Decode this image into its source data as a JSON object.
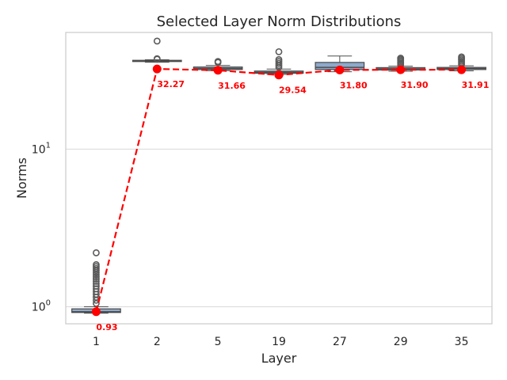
{
  "chart_data": {
    "type": "box",
    "title": "Selected Layer Norm Distributions",
    "xlabel": "Layer",
    "ylabel": "Norms",
    "yscale": "log",
    "ylim": [
      0.78,
      55
    ],
    "y_ticks": [
      {
        "value": 1,
        "base": "10",
        "exp": "0"
      },
      {
        "value": 10,
        "base": "10",
        "exp": "1"
      }
    ],
    "grid": "horizontal",
    "categories": [
      "1",
      "2",
      "5",
      "19",
      "27",
      "29",
      "35"
    ],
    "boxes": [
      {
        "q1": 0.92,
        "median": 0.93,
        "q3": 0.97,
        "whisker_low": 0.91,
        "whisker_high": 1.0,
        "outliers": [
          1.05,
          1.1,
          1.15,
          1.2,
          1.25,
          1.3,
          1.35,
          1.4,
          1.45,
          1.5,
          1.55,
          1.6,
          1.65,
          1.7,
          1.75,
          1.8,
          1.85,
          2.2
        ]
      },
      {
        "q1": 36.0,
        "median": 36.2,
        "q3": 36.6,
        "whisker_low": 35.6,
        "whisker_high": 36.9,
        "outliers": [
          37.2,
          37.5,
          48.5
        ]
      },
      {
        "q1": 32.0,
        "median": 32.5,
        "q3": 33.2,
        "whisker_low": 31.5,
        "whisker_high": 34.0,
        "outliers": [
          35.5,
          36.0
        ]
      },
      {
        "q1": 30.3,
        "median": 30.7,
        "q3": 31.3,
        "whisker_low": 29.8,
        "whisker_high": 32.2,
        "outliers": [
          33.0,
          34.0,
          35.0,
          36.0,
          37.0,
          41.5
        ]
      },
      {
        "q1": 32.0,
        "median": 33.0,
        "q3": 35.5,
        "whisker_low": 31.0,
        "whisker_high": 39.0,
        "outliers": []
      },
      {
        "q1": 31.8,
        "median": 32.3,
        "q3": 32.9,
        "whisker_low": 31.2,
        "whisker_high": 33.6,
        "outliers": [
          34.3,
          35.0,
          35.7,
          36.4,
          37.1,
          37.8
        ]
      },
      {
        "q1": 32.0,
        "median": 32.5,
        "q3": 33.0,
        "whisker_low": 31.4,
        "whisker_high": 33.8,
        "outliers": [
          34.5,
          35.3,
          36.1,
          36.9,
          37.7,
          38.5
        ]
      }
    ],
    "mean_line": {
      "values": [
        0.93,
        32.27,
        31.66,
        29.54,
        31.8,
        31.9,
        31.91
      ],
      "labels": [
        "0.93",
        "32.27",
        "31.66",
        "29.54",
        "31.80",
        "31.90",
        "31.91"
      ],
      "color": "#ff0000",
      "style": "dashed"
    },
    "colors": {
      "box_fill": "#8eaacb",
      "box_edge": "#4d4d4d",
      "median": "#4d4d4d",
      "outlier": "#5a5a5a",
      "grid": "#d9d9d9",
      "axes": "#cccccc",
      "text": "#262626"
    }
  }
}
